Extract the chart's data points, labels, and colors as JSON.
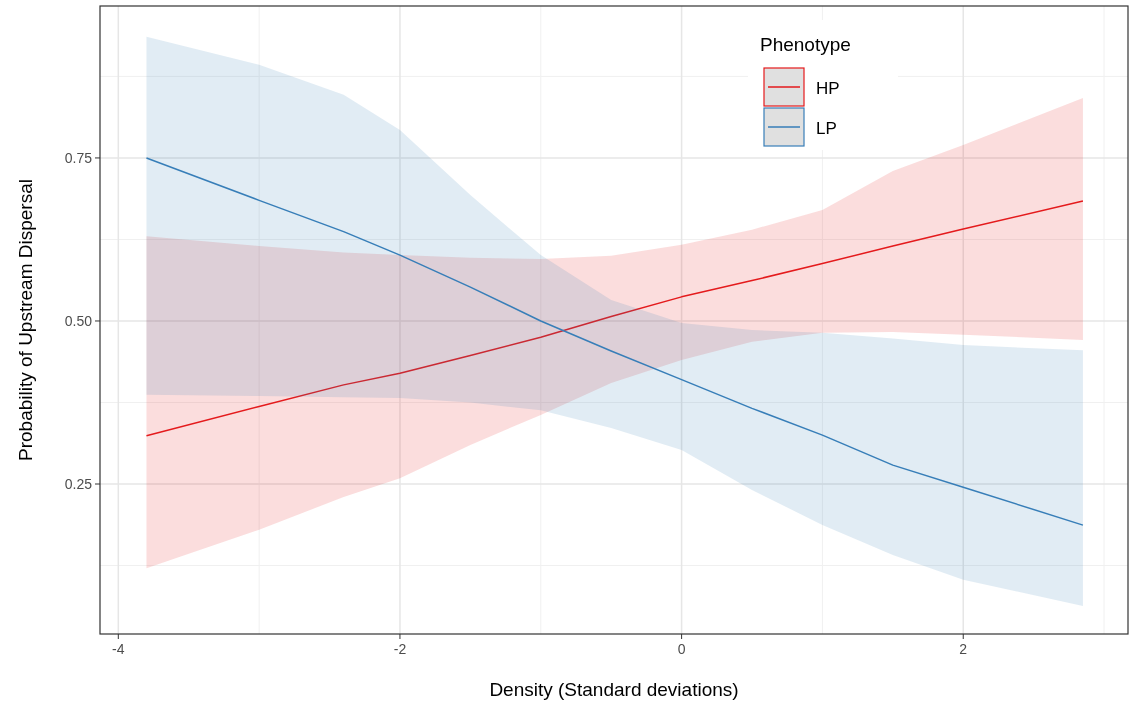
{
  "chart_data": {
    "type": "line",
    "xlabel": "Density (Standard deviations)",
    "ylabel": "Probability of Upstream Dispersal",
    "legend_title": "Phenotype",
    "x": [
      -3.8,
      -3,
      -2.4,
      -2,
      -1.5,
      -1,
      -0.5,
      0,
      0.5,
      1,
      1.5,
      2,
      2.85
    ],
    "series": [
      {
        "name": "HP",
        "color": "#e41a1c",
        "values": [
          0.324,
          0.369,
          0.402,
          0.42,
          0.447,
          0.475,
          0.507,
          0.537,
          0.562,
          0.588,
          0.615,
          0.641,
          0.684
        ],
        "lower": [
          0.121,
          0.18,
          0.23,
          0.259,
          0.31,
          0.356,
          0.405,
          0.44,
          0.468,
          0.482,
          0.483,
          0.479,
          0.471
        ],
        "upper": [
          0.63,
          0.615,
          0.605,
          0.601,
          0.597,
          0.595,
          0.6,
          0.617,
          0.64,
          0.67,
          0.73,
          0.77,
          0.842
        ]
      },
      {
        "name": "LP",
        "color": "#377eb8",
        "values": [
          0.75,
          0.685,
          0.637,
          0.601,
          0.552,
          0.5,
          0.454,
          0.41,
          0.366,
          0.325,
          0.279,
          0.245,
          0.187
        ],
        "lower": [
          0.387,
          0.385,
          0.383,
          0.382,
          0.375,
          0.363,
          0.336,
          0.302,
          0.241,
          0.187,
          0.141,
          0.103,
          0.063
        ],
        "upper": [
          0.936,
          0.893,
          0.847,
          0.793,
          0.693,
          0.601,
          0.532,
          0.497,
          0.486,
          0.482,
          0.473,
          0.463,
          0.455
        ]
      }
    ],
    "xlim": [
      -4.13,
      3.17
    ],
    "ylim": [
      0.02,
      0.983
    ],
    "xticks": [
      -4,
      -2,
      0,
      2
    ],
    "yticks": [
      0.25,
      {
        "value": 0.5,
        "label": "0.50"
      },
      0.75
    ],
    "grid": true,
    "legend": "top right",
    "line_style": "solid",
    "marker": "none"
  }
}
